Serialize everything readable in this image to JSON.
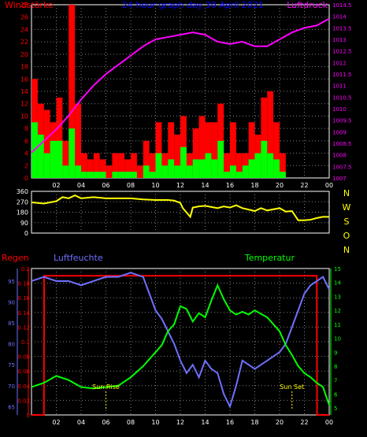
{
  "colors": {
    "background": "#000000",
    "grid": "#808080",
    "frame": "#ffffff",
    "wind_max": "#ff0000",
    "wind_avg": "#00ff00",
    "pressure": "#ff00ff",
    "direction": "#ffff00",
    "rain": "#ff0000",
    "humidity": "#7070ff",
    "temperature": "#00ff00",
    "sun": "#ffff00",
    "title": "#0000ff"
  },
  "x_ticks": [
    "02",
    "04",
    "06",
    "08",
    "10",
    "12",
    "14",
    "16",
    "18",
    "20",
    "22",
    "00"
  ],
  "chart_data": [
    {
      "type": "bar",
      "title": "24 hour graph day  30 April 2021",
      "left_label": "Windstärke",
      "right_label": "Luftdruck",
      "xlim": [
        0,
        24
      ],
      "ylim_left": [
        0,
        28
      ],
      "yticks_left": [
        0,
        2,
        4,
        6,
        8,
        10,
        12,
        14,
        16,
        18,
        20,
        22,
        24,
        26,
        28
      ],
      "ylim_right": [
        1007,
        1014.5
      ],
      "yticks_right": [
        "1007",
        "1007.5",
        "1008",
        "1008.5",
        "1009",
        "1009.5",
        "1010",
        "1010.5",
        "1011",
        "1011.5",
        "1012",
        "1012.5",
        "1013",
        "1013.5",
        "1014",
        "1014.5"
      ],
      "series": [
        {
          "name": "wind_max",
          "hours": [
            0.0,
            0.5,
            1.0,
            1.5,
            2.0,
            2.5,
            3.0,
            3.5,
            4.0,
            4.5,
            5.0,
            5.5,
            6.0,
            6.5,
            7.0,
            7.5,
            8.0,
            8.5,
            9.0,
            9.5,
            10.0,
            10.5,
            11.0,
            11.5,
            12.0,
            12.5,
            13.0,
            13.5,
            14.0,
            14.5,
            15.0,
            15.5,
            16.0,
            16.5,
            17.0,
            17.5,
            18.0,
            18.5,
            19.0,
            19.5,
            20.0,
            20.5
          ],
          "values": [
            16,
            12,
            11,
            9,
            13,
            6,
            28,
            12,
            4,
            3,
            4,
            3,
            2,
            4,
            4,
            3,
            4,
            2,
            6,
            4,
            9,
            4,
            9,
            7,
            10,
            4,
            8,
            10,
            9,
            9,
            12,
            4,
            9,
            4,
            4,
            9,
            7,
            13,
            14,
            9,
            4,
            0
          ]
        },
        {
          "name": "wind_avg",
          "hours": [
            0.0,
            0.5,
            1.0,
            1.5,
            2.0,
            2.5,
            3.0,
            3.5,
            4.0,
            4.5,
            5.0,
            5.5,
            6.0,
            6.5,
            7.0,
            7.5,
            8.0,
            8.5,
            9.0,
            9.5,
            10.0,
            10.5,
            11.0,
            11.5,
            12.0,
            12.5,
            13.0,
            13.5,
            14.0,
            14.5,
            15.0,
            15.5,
            16.0,
            16.5,
            17.0,
            17.5,
            18.0,
            18.5,
            19.0,
            19.5,
            20.0,
            20.5
          ],
          "values": [
            9,
            7,
            4,
            6,
            6,
            2,
            8,
            2,
            1,
            1,
            1,
            1,
            0,
            1,
            1,
            1,
            1,
            0,
            2,
            1,
            4,
            2,
            3,
            2,
            5,
            2,
            3,
            3,
            4,
            3,
            6,
            1,
            2,
            1,
            2,
            3,
            4,
            6,
            4,
            3,
            1,
            0
          ]
        },
        {
          "name": "pressure",
          "hours": [
            0.0,
            1.0,
            2.0,
            3.0,
            4.0,
            5.0,
            6.0,
            7.0,
            8.0,
            9.0,
            10.0,
            11.0,
            12.0,
            13.0,
            14.0,
            15.0,
            16.0,
            17.0,
            18.0,
            19.0,
            20.0,
            21.0,
            22.0,
            23.0,
            24.0
          ],
          "values": [
            1008.1,
            1008.6,
            1009.1,
            1009.7,
            1010.4,
            1011.0,
            1011.5,
            1011.9,
            1012.3,
            1012.7,
            1013.0,
            1013.1,
            1013.2,
            1013.3,
            1013.2,
            1012.9,
            1012.8,
            1012.9,
            1012.7,
            1012.7,
            1013.0,
            1013.3,
            1013.5,
            1013.6,
            1013.9
          ]
        }
      ]
    },
    {
      "type": "line",
      "right_labels": [
        "N",
        "W",
        "S",
        "O",
        "N"
      ],
      "xlim": [
        0,
        24
      ],
      "ylim": [
        0,
        360
      ],
      "yticks": [
        0,
        90,
        180,
        270,
        360
      ],
      "series": [
        {
          "name": "direction",
          "hours": [
            0.0,
            1.0,
            2.0,
            2.5,
            3.0,
            3.5,
            4.0,
            5.0,
            6.0,
            7.0,
            8.0,
            9.0,
            10.0,
            11.0,
            11.5,
            12.0,
            12.2,
            12.8,
            13.0,
            13.5,
            14.0,
            14.5,
            15.0,
            15.5,
            16.0,
            16.5,
            17.0,
            18.0,
            18.5,
            19.0,
            20.0,
            20.5,
            21.0,
            21.5,
            22.0,
            22.5,
            23.0,
            23.5,
            24.0
          ],
          "values": [
            265,
            255,
            275,
            310,
            300,
            325,
            300,
            310,
            300,
            300,
            300,
            290,
            285,
            285,
            280,
            260,
            215,
            140,
            220,
            230,
            235,
            225,
            215,
            230,
            220,
            240,
            215,
            190,
            215,
            195,
            215,
            185,
            190,
            110,
            110,
            115,
            130,
            140,
            140
          ]
        }
      ]
    },
    {
      "type": "line",
      "left_label_outer": "Regen",
      "left_label_inner": "Luftfeuchte",
      "right_label": "Temperatur",
      "xlim": [
        0,
        24
      ],
      "ylim_rain": [
        0,
        0.2
      ],
      "yticks_rain": [
        "0",
        "0.02",
        "0.04",
        "0.06",
        "0.08",
        "0.1",
        "0.12",
        "0.14",
        "0.16",
        "0.18",
        "0.2"
      ],
      "ylim_humidity": [
        63,
        98
      ],
      "yticks_humidity": [
        65,
        70,
        75,
        80,
        85,
        90,
        95
      ],
      "ylim_temperature": [
        4.5,
        15
      ],
      "yticks_temperature": [
        5,
        6,
        7,
        8,
        9,
        10,
        11,
        12,
        13,
        14,
        15
      ],
      "annotations": [
        {
          "text": "Sun Rise",
          "hour": 6.0
        },
        {
          "text": "Sun Set",
          "hour": 21.0
        }
      ],
      "series": [
        {
          "name": "humidity",
          "hours": [
            0.0,
            1.0,
            2.0,
            3.0,
            4.0,
            5.0,
            6.0,
            7.0,
            8.0,
            9.0,
            9.5,
            10.0,
            10.5,
            11.0,
            11.5,
            12.0,
            12.5,
            13.0,
            13.5,
            14.0,
            14.5,
            15.0,
            15.5,
            16.0,
            16.5,
            17.0,
            17.5,
            18.0,
            19.0,
            20.0,
            20.5,
            21.0,
            21.5,
            22.0,
            22.5,
            23.0,
            23.5,
            24.0
          ],
          "values": [
            95,
            96,
            95,
            95,
            94,
            95,
            96,
            96,
            97,
            96,
            92,
            88,
            86,
            83,
            80,
            76,
            73,
            75,
            72,
            76,
            74,
            73,
            68,
            65,
            70,
            76,
            75,
            74,
            76,
            78,
            80,
            84,
            88,
            92,
            94,
            95,
            96,
            93
          ]
        },
        {
          "name": "temperature",
          "hours": [
            0.0,
            1.0,
            2.0,
            3.0,
            4.0,
            5.0,
            6.0,
            7.0,
            8.0,
            9.0,
            10.0,
            10.5,
            11.0,
            11.5,
            12.0,
            12.5,
            13.0,
            13.5,
            14.0,
            14.5,
            15.0,
            15.5,
            16.0,
            16.5,
            17.0,
            17.5,
            18.0,
            19.0,
            20.0,
            20.5,
            21.0,
            21.5,
            22.0,
            22.5,
            23.0,
            23.5,
            24.0
          ],
          "values": [
            6.5,
            6.8,
            7.3,
            7.0,
            6.5,
            6.4,
            6.5,
            6.6,
            7.2,
            8.0,
            9.0,
            9.5,
            10.5,
            11.0,
            12.3,
            12.1,
            11.2,
            11.8,
            11.5,
            12.7,
            13.8,
            12.8,
            12.0,
            11.7,
            11.9,
            11.7,
            12.0,
            11.5,
            10.5,
            9.5,
            8.8,
            8.0,
            7.5,
            7.2,
            6.8,
            6.5,
            5.2
          ]
        },
        {
          "name": "rain",
          "hours": [
            0.0,
            1.0,
            1.02,
            23.0,
            23.02,
            24.0
          ],
          "values": [
            0,
            0,
            0.19,
            0.19,
            0,
            0
          ]
        }
      ]
    }
  ]
}
